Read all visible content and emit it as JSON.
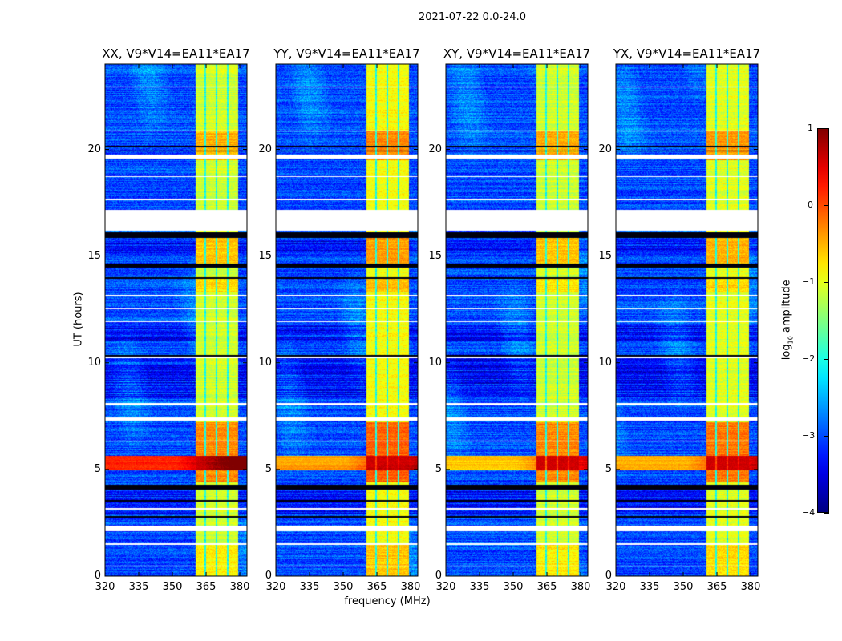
{
  "chart_data": {
    "type": "heatmap",
    "title": "2021-07-22 0.0-24.0",
    "xlabel": "frequency (MHz)",
    "ylabel": "UT (hours)",
    "xlim": [
      320,
      383.2
    ],
    "ylim": [
      0,
      24
    ],
    "xticks": [
      320,
      335,
      350,
      365,
      380
    ],
    "yticks": [
      0,
      5,
      10,
      15,
      20
    ],
    "colorbar": {
      "label_main": "log",
      "label_sub": "10",
      "label_rest": " amplitude",
      "colormap": "jet",
      "range": [
        -4,
        1
      ],
      "ticks": [
        1,
        0,
        -1,
        -2,
        -3,
        -4
      ]
    },
    "panels": [
      {
        "title": "XX, V9*V14=EA11*EA17",
        "band_boost": 0.0,
        "rfi_level": 0.2
      },
      {
        "title": "YY, V9*V14=EA11*EA17",
        "band_boost": 0.2,
        "rfi_level": -0.4
      },
      {
        "title": "XY, V9*V14=EA11*EA17",
        "band_boost": 0.0,
        "rfi_level": -0.6
      },
      {
        "title": "YX, V9*V14=EA11*EA17",
        "band_boost": 0.1,
        "rfi_level": -0.5
      }
    ],
    "features": {
      "background_level": -3.0,
      "band_level": -1.1,
      "bands_mhz": [
        [
          360.2,
          364.3
        ],
        [
          365,
          369.3
        ],
        [
          370,
          374.3
        ],
        [
          375,
          379.3
        ]
      ],
      "band_hot_hours": [
        [
          19.5,
          20.9,
          0.6
        ],
        [
          14.6,
          16.0,
          0.5
        ],
        [
          4.4,
          7.2,
          0.8
        ],
        [
          5.0,
          5.6,
          0.6
        ],
        [
          13.3,
          14.0,
          0.35
        ],
        [
          0,
          1.5,
          0.3
        ]
      ],
      "rfi_hours": [
        4.95,
        5.65
      ],
      "flagged_hours": [
        [
          16.2,
          17.15
        ],
        [
          19.55,
          19.75
        ],
        [
          2.1,
          2.35
        ],
        [
          1.45,
          1.55
        ],
        [
          0.45,
          0.5
        ],
        [
          20.85,
          20.9
        ],
        [
          13.1,
          13.2
        ],
        [
          7.3,
          7.45
        ],
        [
          8.0,
          8.1
        ],
        [
          10.2,
          10.28
        ],
        [
          12.5,
          12.55
        ],
        [
          3.1,
          3.18
        ],
        [
          17.6,
          17.68
        ],
        [
          22.9,
          22.95
        ],
        [
          18.7,
          18.75
        ],
        [
          11.9,
          11.93
        ],
        [
          6.3,
          6.35
        ]
      ],
      "black_hours": [
        [
          15.85,
          16.1
        ],
        [
          14.45,
          14.65
        ],
        [
          4.05,
          4.3
        ],
        [
          20.1,
          20.17
        ],
        [
          19.9,
          19.95
        ],
        [
          3.5,
          3.55
        ],
        [
          2.75,
          2.82
        ],
        [
          10.3,
          10.36
        ],
        [
          13.95,
          14.0
        ]
      ],
      "dark_hours": [
        [
          8.3,
          10.2
        ],
        [
          2.9,
          4.0
        ],
        [
          15.0,
          15.8
        ],
        [
          11.0,
          11.8
        ]
      ]
    }
  }
}
